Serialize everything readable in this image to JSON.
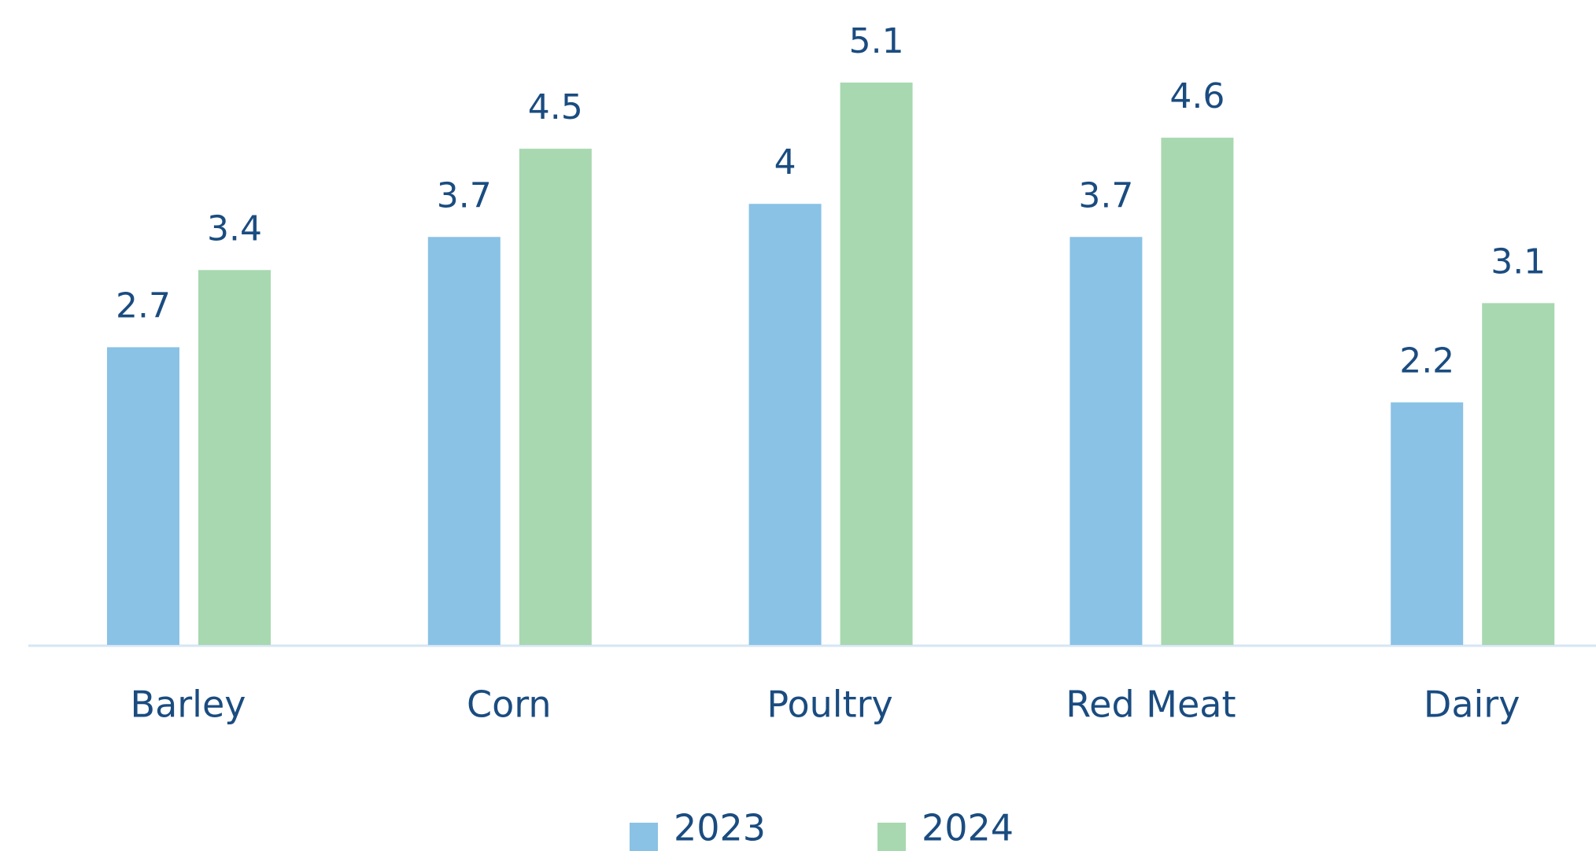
{
  "chart_data": {
    "type": "bar",
    "categories": [
      "Barley",
      "Corn",
      "Poultry",
      "Red Meat",
      "Dairy"
    ],
    "series": [
      {
        "name": "2023",
        "color": "#8ac2e6",
        "values": [
          2.7,
          3.7,
          4,
          3.7,
          2.2
        ]
      },
      {
        "name": "2024",
        "color": "#a8d8b0",
        "values": [
          3.4,
          4.5,
          5.1,
          4.6,
          3.1
        ]
      }
    ],
    "legend": "bottom"
  }
}
